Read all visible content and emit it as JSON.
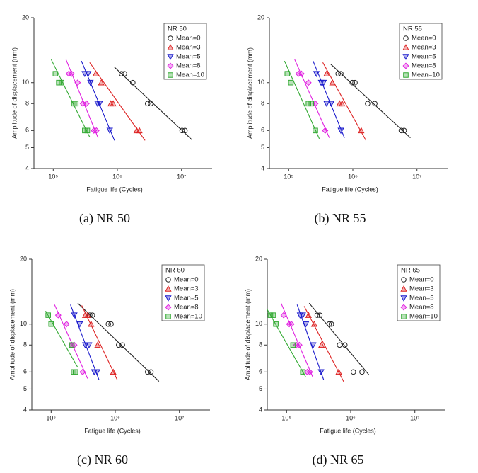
{
  "chart_data": [
    {
      "type": "scatter",
      "title": "NR 50",
      "caption": "(a) NR 50",
      "xlabel": "Fatigue life (Cycles)",
      "ylabel": "Amplitude of displacement (mm)",
      "xlog": true,
      "ylog": true,
      "legend": "upper right",
      "xlim": [
        50000,
        30000000
      ],
      "ylim": [
        4,
        20
      ],
      "xticks": [
        {
          "value": 100000,
          "label": "10⁵"
        },
        {
          "value": 1000000,
          "label": "10⁶"
        },
        {
          "value": 10000000,
          "label": "10⁷"
        }
      ],
      "yticks": [
        4,
        5,
        6,
        8,
        10,
        20
      ],
      "series": [
        {
          "name": "Mean=0",
          "color": "#222222",
          "marker": "circle",
          "x": [
            1160000,
            1290000,
            1740000,
            2960000,
            3300000,
            10200000,
            11300000
          ],
          "y": [
            11,
            11,
            10,
            8,
            8,
            6,
            6
          ],
          "fit_x": [
            900000,
            14600000
          ],
          "fit_y": [
            11.8,
            5.43
          ]
        },
        {
          "name": "Mean=3",
          "color": "#dd2222",
          "marker": "triangle-up",
          "x": [
            460000,
            560000,
            790000,
            860000,
            2000000,
            2200000
          ],
          "y": [
            11,
            10,
            8,
            8,
            6,
            6
          ],
          "fit_x": [
            370000,
            2700000
          ],
          "fit_y": [
            12.4,
            5.4
          ]
        },
        {
          "name": "Mean=5",
          "color": "#1a1acc",
          "marker": "triangle-down",
          "x": [
            310000,
            350000,
            380000,
            490000,
            530000,
            760000
          ],
          "y": [
            11,
            11,
            10,
            8,
            8,
            6
          ],
          "fit_x": [
            275000,
            900000
          ],
          "fit_y": [
            12.6,
            5.4
          ]
        },
        {
          "name": "Mean=8",
          "color": "#e020e0",
          "marker": "diamond",
          "x": [
            175000,
            193000,
            240000,
            290000,
            330000,
            430000,
            470000
          ],
          "y": [
            11,
            11,
            10,
            8,
            8,
            6,
            6
          ],
          "fit_x": [
            158000,
            500000
          ],
          "fit_y": [
            12.8,
            5.55
          ]
        },
        {
          "name": "Mean=10",
          "color": "#33aa33",
          "marker": "square",
          "x": [
            108000,
            122000,
            135000,
            210000,
            225000,
            310000,
            340000
          ],
          "y": [
            11,
            10,
            10,
            8,
            8,
            6,
            6
          ],
          "fit_x": [
            93000,
            370000
          ],
          "fit_y": [
            12.8,
            5.6
          ]
        }
      ]
    },
    {
      "type": "scatter",
      "title": "NR 55",
      "caption": "(b) NR 55",
      "xlabel": "Fatigue life (Cycles)",
      "ylabel": "Amplitude of displacement (mm)",
      "xlog": true,
      "ylog": true,
      "legend": "upper right",
      "xlim": [
        50000,
        30000000
      ],
      "ylim": [
        4,
        20
      ],
      "xticks": [
        {
          "value": 100000,
          "label": "10⁵"
        },
        {
          "value": 1000000,
          "label": "10⁶"
        },
        {
          "value": 10000000,
          "label": "10⁷"
        }
      ],
      "yticks": [
        4,
        5,
        6,
        8,
        10,
        20
      ],
      "series": [
        {
          "name": "Mean=0",
          "color": "#222222",
          "marker": "circle",
          "x": [
            590000,
            650000,
            980000,
            1080000,
            1700000,
            2200000,
            5700000,
            6300000
          ],
          "y": [
            11,
            11,
            10,
            10,
            8,
            8,
            6,
            6
          ],
          "fit_x": [
            450000,
            7900000
          ],
          "fit_y": [
            12.2,
            5.55
          ]
        },
        {
          "name": "Mean=3",
          "color": "#dd2222",
          "marker": "triangle-up",
          "x": [
            390000,
            480000,
            620000,
            680000,
            1350000
          ],
          "y": [
            11,
            10,
            8,
            8,
            6
          ],
          "fit_x": [
            340000,
            1600000
          ],
          "fit_y": [
            12.4,
            5.4
          ]
        },
        {
          "name": "Mean=5",
          "color": "#1a1acc",
          "marker": "triangle-down",
          "x": [
            270000,
            320000,
            350000,
            390000,
            460000,
            650000
          ],
          "y": [
            11,
            10,
            10,
            8,
            8,
            6
          ],
          "fit_x": [
            240000,
            740000
          ],
          "fit_y": [
            12.6,
            5.55
          ]
        },
        {
          "name": "Mean=8",
          "color": "#e020e0",
          "marker": "diamond",
          "x": [
            142000,
            158000,
            203000,
            260000,
            370000
          ],
          "y": [
            11,
            11,
            10,
            8,
            6
          ],
          "fit_x": [
            124000,
            430000
          ],
          "fit_y": [
            12.8,
            5.55
          ]
        },
        {
          "name": "Mean=10",
          "color": "#33aa33",
          "marker": "square",
          "x": [
            95000,
            108000,
            203000,
            225000,
            260000
          ],
          "y": [
            11,
            10,
            8,
            8,
            6
          ],
          "fit_x": [
            86000,
            300000
          ],
          "fit_y": [
            12.6,
            5.5
          ]
        }
      ]
    },
    {
      "type": "scatter",
      "title": "NR 60",
      "caption": "(c) NR 60",
      "xlabel": "Fatigue life (Cycles)",
      "ylabel": "Amplitude of displacement (mm)",
      "xlog": true,
      "ylog": true,
      "legend": "upper right",
      "xlim": [
        50000,
        30000000
      ],
      "ylim": [
        4,
        20
      ],
      "xticks": [
        {
          "value": 100000,
          "label": "10⁵"
        },
        {
          "value": 1000000,
          "label": "10⁶"
        },
        {
          "value": 10000000,
          "label": "10⁷"
        }
      ],
      "yticks": [
        4,
        5,
        6,
        8,
        10,
        20
      ],
      "series": [
        {
          "name": "Mean=0",
          "color": "#222222",
          "marker": "circle",
          "x": [
            400000,
            440000,
            780000,
            860000,
            1130000,
            1290000,
            3200000,
            3600000
          ],
          "y": [
            11,
            11,
            10,
            10,
            8,
            8,
            6,
            6
          ],
          "fit_x": [
            260000,
            4800000
          ],
          "fit_y": [
            12.5,
            5.43
          ]
        },
        {
          "name": "Mean=3",
          "color": "#dd2222",
          "marker": "triangle-up",
          "x": [
            340000,
            370000,
            420000,
            530000,
            930000
          ],
          "y": [
            11,
            11,
            10,
            8,
            6
          ],
          "fit_x": [
            300000,
            1080000
          ],
          "fit_y": [
            12.2,
            5.5
          ]
        },
        {
          "name": "Mean=5",
          "color": "#1a1acc",
          "marker": "triangle-down",
          "x": [
            230000,
            280000,
            340000,
            390000,
            470000,
            520000
          ],
          "y": [
            11,
            10,
            8,
            8,
            6,
            6
          ],
          "fit_x": [
            200000,
            560000
          ],
          "fit_y": [
            12.3,
            5.5
          ]
        },
        {
          "name": "Mean=8",
          "color": "#e020e0",
          "marker": "diamond",
          "x": [
            129000,
            174000,
            210000,
            230000,
            310000
          ],
          "y": [
            11,
            10,
            8,
            8,
            6
          ],
          "fit_x": [
            113000,
            370000
          ],
          "fit_y": [
            12.3,
            5.6
          ]
        },
        {
          "name": "Mean=10",
          "color": "#33aa33",
          "marker": "square",
          "x": [
            90000,
            100000,
            210000,
            225000,
            240000
          ],
          "y": [
            11,
            10,
            8,
            6,
            6
          ],
          "fit_x": [
            82000,
            260000
          ],
          "fit_y": [
            11.5,
            6.3
          ]
        }
      ]
    },
    {
      "type": "scatter",
      "title": "NR 65",
      "caption": "(d) NR 65",
      "xlabel": "Fatigue life (Cycles)",
      "ylabel": "Amplitude of displacement (mm)",
      "xlog": true,
      "ylog": true,
      "legend": "upper right",
      "xlim": [
        50000,
        30000000
      ],
      "ylim": [
        4,
        20
      ],
      "xticks": [
        {
          "value": 100000,
          "label": "10⁵"
        },
        {
          "value": 1000000,
          "label": "10⁶"
        },
        {
          "value": 10000000,
          "label": "10⁷"
        }
      ],
      "yticks": [
        4,
        5,
        6,
        8,
        10,
        20
      ],
      "series": [
        {
          "name": "Mean=0",
          "color": "#222222",
          "marker": "circle",
          "x": [
            300000,
            330000,
            460000,
            500000,
            670000,
            810000,
            1100000,
            1500000
          ],
          "y": [
            11,
            11,
            10,
            10,
            8,
            8,
            6,
            6
          ],
          "fit_x": [
            225000,
            1940000
          ],
          "fit_y": [
            12.5,
            5.8
          ]
        },
        {
          "name": "Mean=3",
          "color": "#dd2222",
          "marker": "triangle-up",
          "x": [
            220000,
            270000,
            350000,
            650000
          ],
          "y": [
            11,
            10,
            8,
            6
          ],
          "fit_x": [
            188000,
            780000
          ],
          "fit_y": [
            12.1,
            5.4
          ]
        },
        {
          "name": "Mean=5",
          "color": "#1a1acc",
          "marker": "triangle-down",
          "x": [
            162000,
            179000,
            200000,
            260000,
            345000
          ],
          "y": [
            11,
            11,
            10,
            8,
            6
          ],
          "fit_x": [
            146000,
            380000
          ],
          "fit_y": [
            12.3,
            5.5
          ]
        },
        {
          "name": "Mean=8",
          "color": "#e020e0",
          "marker": "diamond",
          "x": [
            90000,
            110000,
            119000,
            142000,
            158000,
            210000,
            230000
          ],
          "y": [
            11,
            10,
            10,
            8,
            8,
            6,
            6
          ],
          "fit_x": [
            82000,
            255000
          ],
          "fit_y": [
            12.5,
            5.7
          ]
        },
        {
          "name": "Mean=10",
          "color": "#33aa33",
          "marker": "square",
          "x": [
            56000,
            62000,
            68000,
            126000,
            179000
          ],
          "y": [
            11,
            11,
            10,
            8,
            6
          ],
          "fit_x": [
            49000,
            198000
          ],
          "fit_y": [
            11.8,
            5.7
          ]
        }
      ]
    }
  ]
}
